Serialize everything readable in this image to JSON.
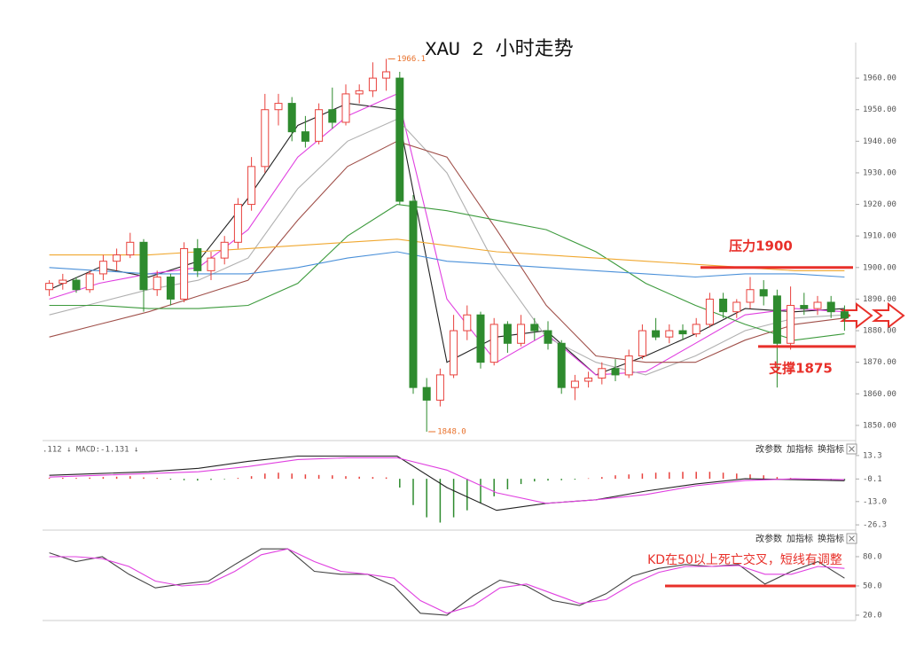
{
  "chart_data": [
    {
      "type": "candlestick",
      "title": "XAU 2 小时走势",
      "up_color": "#e8413c",
      "down_color": "#2e8b2e",
      "open": [
        1893,
        1895,
        1896,
        1893,
        1898,
        1902,
        1904,
        1908,
        1893,
        1897,
        1890,
        1906,
        1899,
        1903,
        1908,
        1920,
        1932,
        1950,
        1952,
        1943,
        1940,
        1950,
        1946,
        1955,
        1956,
        1960,
        1960,
        1921,
        1862,
        1858,
        1866,
        1880,
        1885,
        1870,
        1882,
        1876,
        1882,
        1880,
        1876,
        1862,
        1864,
        1865,
        1868,
        1866,
        1872,
        1880,
        1878,
        1880,
        1879,
        1882,
        1890,
        1886,
        1889,
        1893,
        1891,
        1876,
        1888,
        1887,
        1889,
        1886
      ],
      "high": [
        1896,
        1898,
        1897,
        1899,
        1904,
        1906,
        1911,
        1909,
        1899,
        1898,
        1908,
        1909,
        1905,
        1910,
        1922,
        1935,
        1955,
        1955,
        1954,
        1948,
        1952,
        1957,
        1958,
        1958,
        1965,
        1966.1,
        1962,
        1923,
        1865,
        1868,
        1885,
        1888,
        1886,
        1884,
        1883,
        1885,
        1884,
        1883,
        1877,
        1866,
        1867,
        1870,
        1871,
        1874,
        1882,
        1884,
        1882,
        1882,
        1884,
        1892,
        1892,
        1890,
        1897,
        1896,
        1893,
        1894,
        1892,
        1891,
        1891,
        1888
      ],
      "low": [
        1891,
        1893,
        1892,
        1892,
        1896,
        1899,
        1903,
        1886,
        1891,
        1888,
        1889,
        1897,
        1896,
        1901,
        1906,
        1918,
        1930,
        1945,
        1940,
        1938,
        1939,
        1944,
        1945,
        1952,
        1954,
        1956,
        1920,
        1860,
        1848.0,
        1856,
        1865,
        1877,
        1868,
        1869,
        1873,
        1875,
        1877,
        1874,
        1860,
        1858,
        1862,
        1863,
        1864,
        1865,
        1871,
        1877,
        1876,
        1877,
        1878,
        1881,
        1884,
        1884,
        1887,
        1888,
        1862,
        1874,
        1885,
        1885,
        1884,
        1880
      ],
      "close": [
        1895,
        1896,
        1893,
        1898,
        1902,
        1904,
        1908,
        1893,
        1897,
        1890,
        1906,
        1899,
        1903,
        1908,
        1920,
        1932,
        1950,
        1952,
        1943,
        1940,
        1950,
        1946,
        1955,
        1956,
        1960,
        1962,
        1921,
        1862,
        1858,
        1866,
        1880,
        1885,
        1870,
        1882,
        1876,
        1882,
        1880,
        1876,
        1862,
        1864,
        1865,
        1868,
        1866,
        1872,
        1880,
        1878,
        1880,
        1879,
        1882,
        1890,
        1886,
        1889,
        1893,
        1891,
        1876,
        1888,
        1887,
        1889,
        1886,
        1884
      ],
      "lines": [
        {
          "color": "#222222",
          "values": [
            1893,
            1900,
            1897,
            1902,
            1922,
            1945,
            1952,
            1950,
            1870,
            1878,
            1880,
            1866,
            1872,
            1879,
            1887,
            1886,
            1887
          ]
        },
        {
          "color": "#e040e0",
          "values": [
            1890,
            1895,
            1898,
            1900,
            1912,
            1935,
            1948,
            1955,
            1890,
            1870,
            1879,
            1866,
            1867,
            1876,
            1885,
            1887,
            1886
          ]
        },
        {
          "color": "#b0b0b0",
          "values": [
            1885,
            1889,
            1893,
            1896,
            1903,
            1925,
            1940,
            1947,
            1930,
            1900,
            1878,
            1870,
            1866,
            1872,
            1880,
            1884,
            1885
          ]
        },
        {
          "color": "#a0504a",
          "values": [
            1878,
            1882,
            1886,
            1891,
            1896,
            1915,
            1932,
            1940,
            1935,
            1912,
            1888,
            1872,
            1870,
            1870,
            1877,
            1882,
            1884
          ]
        },
        {
          "color": "#3c9a3c",
          "values": [
            1888,
            1888,
            1887,
            1887,
            1888,
            1895,
            1910,
            1920,
            1918,
            1915,
            1912,
            1905,
            1895,
            1888,
            1882,
            1877,
            1879
          ]
        },
        {
          "color": "#f0a830",
          "values": [
            1904,
            1904,
            1904,
            1905,
            1906,
            1907,
            1908,
            1909,
            1907,
            1905,
            1904,
            1903,
            1902,
            1901,
            1900,
            1899,
            1899
          ]
        },
        {
          "color": "#4a90d9",
          "values": [
            1900,
            1899,
            1898,
            1898,
            1898,
            1900,
            1903,
            1905,
            1902,
            1901,
            1900,
            1899,
            1898,
            1897,
            1898,
            1898,
            1897
          ]
        }
      ],
      "ylim": [
        1846.6,
        1970.7
      ],
      "yticks": [
        {
          "value": 1850,
          "label": "1850.00"
        },
        {
          "value": 1860,
          "label": "1860.00"
        },
        {
          "value": 1870,
          "label": "1870.00"
        },
        {
          "value": 1880,
          "label": "1880.00"
        },
        {
          "value": 1890,
          "label": "1890.00"
        },
        {
          "value": 1900,
          "label": "1900.00"
        },
        {
          "value": 1910,
          "label": "1910.00"
        },
        {
          "value": 1920,
          "label": "1920.00"
        },
        {
          "value": 1930,
          "label": "1930.00"
        },
        {
          "value": 1940,
          "label": "1940.00"
        },
        {
          "value": 1950,
          "label": "1950.00"
        },
        {
          "value": 1960,
          "label": "1960.00"
        }
      ],
      "extremes": [
        {
          "value": 1966.1,
          "label": "1966.1"
        },
        {
          "value": 1848.0,
          "label": "1848.0"
        }
      ],
      "annotations": [
        {
          "text": "压力1900",
          "value": 1900
        },
        {
          "text": "支撑1875",
          "value": 1875
        }
      ]
    },
    {
      "type": "macd",
      "header": ".112 ↓ MACD:-1.131 ↓",
      "buttons": [
        "改参数",
        "加指标",
        "换指标"
      ],
      "lines": [
        {
          "color": "#222222",
          "values": [
            2,
            3,
            4,
            6,
            10,
            13,
            13,
            13,
            -5,
            -18,
            -14,
            -12,
            -7,
            -3,
            0,
            -0.5,
            -1.1
          ]
        },
        {
          "color": "#e040e0",
          "values": [
            1,
            2,
            3,
            4,
            7,
            11,
            12,
            12,
            5,
            -8,
            -14,
            -12,
            -9,
            -4,
            -1,
            0,
            -0.5
          ]
        }
      ],
      "histogram": [
        0.5,
        0.6,
        0.5,
        0.7,
        1,
        1.2,
        1.5,
        0.8,
        0.5,
        -0.5,
        -0.8,
        -1,
        -0.6,
        -0.3,
        0.5,
        1.5,
        3,
        3.5,
        3,
        2.5,
        2.2,
        2,
        1.5,
        1.2,
        1,
        0.8,
        -5,
        -15,
        -22,
        -25,
        -22,
        -18,
        -14,
        -10,
        -6,
        -3,
        -1.5,
        -1,
        -0.8,
        -0.5,
        0.3,
        1,
        2,
        2.5,
        3,
        3.5,
        3.8,
        4,
        4,
        4,
        3.5,
        3,
        2.5,
        2,
        1,
        0.5,
        -0.3,
        -0.5,
        -0.8,
        -1
      ],
      "up_color": "#e8413c",
      "down_color": "#2e8b2e",
      "ylim": [
        -29.3,
        18.8
      ],
      "yticks": [
        13.3,
        -0.1,
        {
          "value": -13,
          "label": "-13.0"
        },
        -26.3
      ]
    },
    {
      "type": "kd",
      "buttons": [
        "改参数",
        "加指标",
        "换指标"
      ],
      "lines": [
        {
          "color": "#444444",
          "values": [
            84,
            75,
            80,
            62,
            48,
            52,
            55,
            72,
            88,
            88,
            65,
            62,
            62,
            50,
            22,
            20,
            40,
            56,
            50,
            35,
            30,
            42,
            60,
            68,
            72,
            70,
            72,
            52,
            65,
            75,
            58
          ]
        },
        {
          "color": "#e040e0",
          "values": [
            80,
            80,
            78,
            70,
            55,
            50,
            52,
            65,
            82,
            88,
            75,
            65,
            62,
            58,
            35,
            22,
            30,
            48,
            52,
            42,
            32,
            36,
            52,
            64,
            70,
            70,
            71,
            62,
            62,
            70,
            68
          ]
        }
      ],
      "ylim": [
        14.5,
        102.7
      ],
      "yticks": [
        {
          "value": 20,
          "label": "20.0"
        },
        {
          "value": 50,
          "label": "50.0"
        },
        {
          "value": 80,
          "label": "80.0"
        }
      ],
      "annotations": [
        {
          "text": "KD在50以上死亡交叉，短线有调整",
          "value": 50
        }
      ]
    }
  ]
}
